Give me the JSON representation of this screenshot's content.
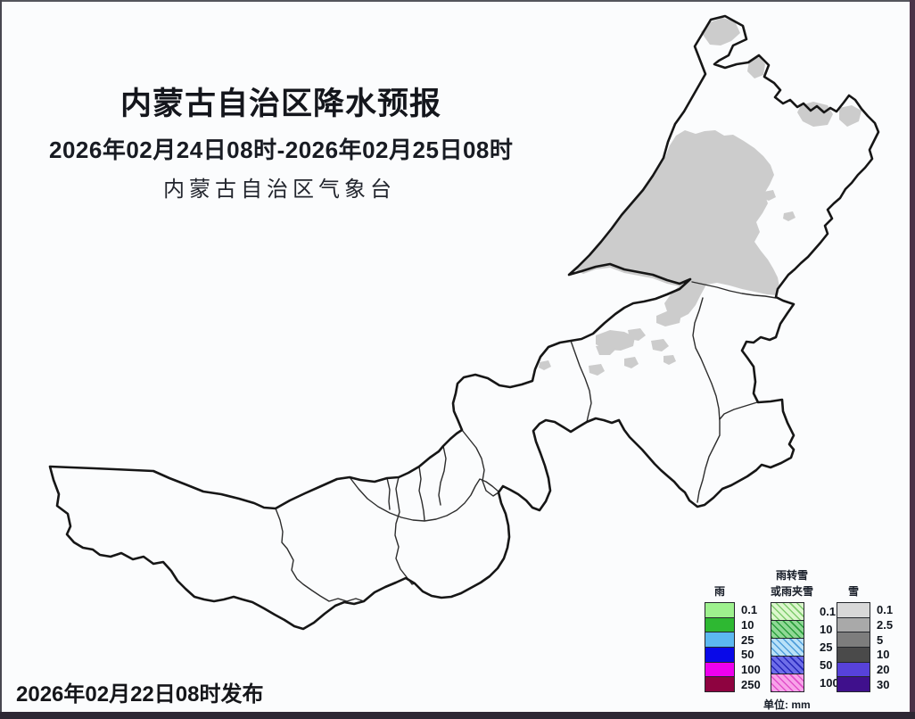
{
  "header": {
    "title": "内蒙古自治区降水预报",
    "period": "2026年02月24日08时-2026年02月25日08时",
    "agency": "内蒙古自治区气象台"
  },
  "footer": {
    "issued": "2026年02月22日08时发布"
  },
  "legend": {
    "unit_label": "单位: mm",
    "columns": [
      {
        "id": "rain",
        "title_lines": [
          "雨"
        ],
        "rows": [
          {
            "value": "0.1",
            "color": "#9ef18e"
          },
          {
            "value": "10",
            "color": "#2eb832"
          },
          {
            "value": "25",
            "color": "#5cb8f0"
          },
          {
            "value": "50",
            "color": "#0909e8"
          },
          {
            "value": "100",
            "color": "#ee00ee"
          },
          {
            "value": "250",
            "color": "#8e0340"
          }
        ]
      },
      {
        "id": "sleet",
        "title_lines": [
          "雨转雪",
          "或雨夹雪"
        ],
        "rows": [
          {
            "value": "0.1",
            "color": "#dcf7cd",
            "stripe": "#7ecb6d",
            "hatch": true
          },
          {
            "value": "10",
            "color": "#90d996",
            "stripe": "#2a9e3c",
            "hatch": true
          },
          {
            "value": "25",
            "color": "#b9e1f8",
            "stripe": "#4f9eda",
            "hatch": true
          },
          {
            "value": "50",
            "color": "#6e6ee8",
            "stripe": "#2525bb",
            "hatch": true
          },
          {
            "value": "100",
            "color": "#f8a3e9",
            "stripe": "#e14fc9",
            "hatch": true
          }
        ]
      },
      {
        "id": "snow",
        "title_lines": [
          "雪"
        ],
        "rows": [
          {
            "value": "0.1",
            "color": "#d8d8d8"
          },
          {
            "value": "2.5",
            "color": "#a9a9a9"
          },
          {
            "value": "5",
            "color": "#7d7d7d"
          },
          {
            "value": "10",
            "color": "#4a4a4a"
          },
          {
            "value": "20",
            "color": "#5742da"
          },
          {
            "value": "30",
            "color": "#3f108c"
          }
        ]
      }
    ]
  },
  "map": {
    "outline_color": "#161616",
    "boundary_color": "#2d2d2d",
    "light_snow_fill": "#cccccc",
    "background": "#fcfdfe"
  }
}
